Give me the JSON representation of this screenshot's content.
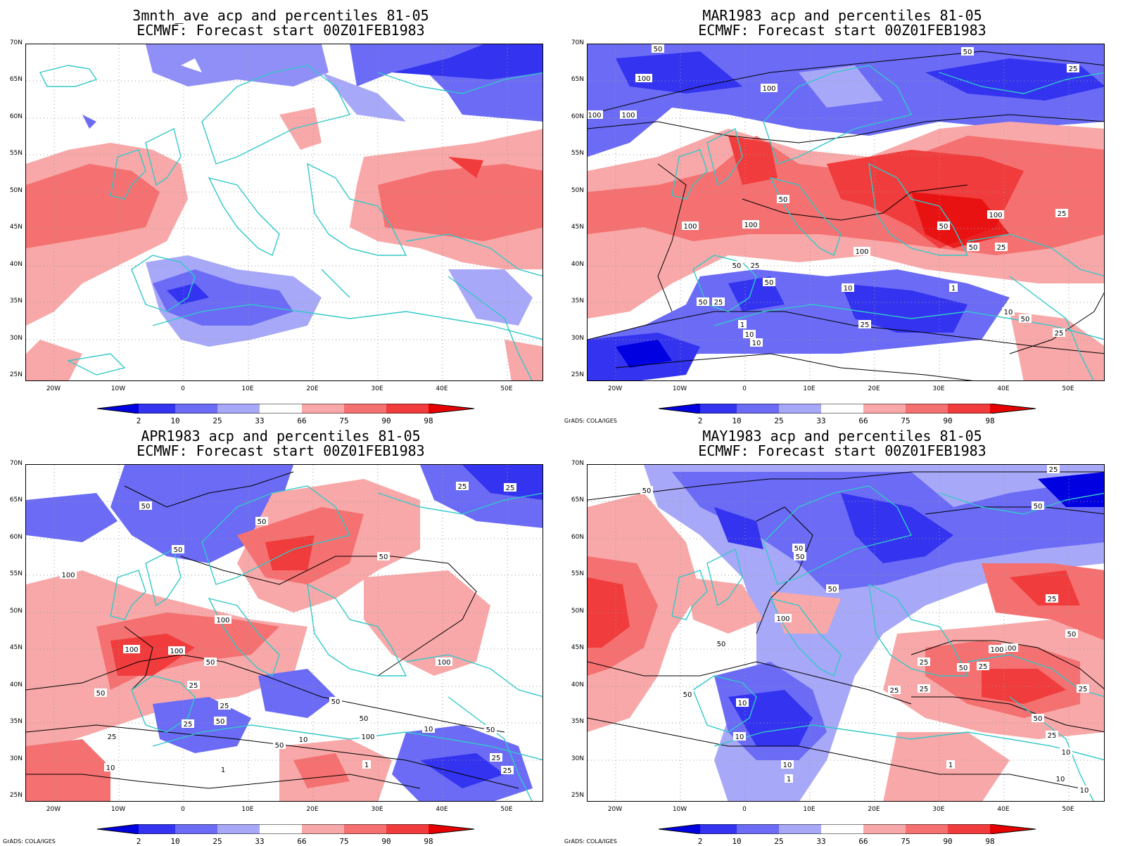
{
  "panels": [
    {
      "title_line1": "3mnth_ave acp and percentiles 81-05",
      "title_line2": "ECMWF: Forecast start 00Z01FEB1983",
      "credit": "",
      "contour_labels": []
    },
    {
      "title_line1": "MAR1983 acp and percentiles 81-05",
      "title_line2": "ECMWF: Forecast start 00Z01FEB1983",
      "credit": "GrADS: COLA/IGES",
      "contour_labels": [
        "50",
        "50",
        "25",
        "100",
        "100",
        "100",
        "100",
        "50",
        "100",
        "100",
        "100",
        "50",
        "50",
        "100",
        "25",
        "25",
        "50",
        "25",
        "50",
        "50",
        "25",
        "10",
        "1",
        "10",
        "10",
        "25",
        "1",
        "50",
        "10",
        "25"
      ]
    },
    {
      "title_line1": "APR1983 acp and percentiles 81-05",
      "title_line2": "ECMWF: Forecast start 00Z01FEB1983",
      "credit": "GrADS: COLA/IGES",
      "contour_labels": [
        "50",
        "25",
        "25",
        "50",
        "50",
        "50",
        "100",
        "100",
        "100",
        "100",
        "100",
        "50",
        "25",
        "25",
        "50",
        "50",
        "50",
        "100",
        "25",
        "50",
        "25",
        "10",
        "10",
        "1",
        "1",
        "25",
        "50",
        "10",
        "25",
        "50"
      ]
    },
    {
      "title_line1": "MAY1983 acp and percentiles 81-05",
      "title_line2": "ECMWF: Forecast start 00Z01FEB1983",
      "credit": "GrADS: COLA/IGES",
      "contour_labels": [
        "50",
        "25",
        "50",
        "50",
        "50",
        "50",
        "100",
        "50",
        "100",
        "50",
        "25",
        "25",
        "50",
        "25",
        "100",
        "25",
        "50",
        "25",
        "25",
        "10",
        "10",
        "10",
        "1",
        "1",
        "10",
        "1",
        "50",
        "25",
        "10",
        "10"
      ]
    }
  ],
  "lat_ticks": [
    "70N",
    "65N",
    "60N",
    "55N",
    "50N",
    "45N",
    "40N",
    "35N",
    "30N",
    "25N"
  ],
  "lon_ticks": [
    "20W",
    "10W",
    "0",
    "10E",
    "20E",
    "30E",
    "40E",
    "50E"
  ],
  "colorbar": {
    "labels": [
      "2",
      "10",
      "25",
      "33",
      "66",
      "75",
      "90",
      "98"
    ],
    "colors": [
      "#0000e0",
      "#3333f0",
      "#6b6bf5",
      "#a8a8f8",
      "#ffffff",
      "#f8a8a8",
      "#f57070",
      "#f03c3c",
      "#e60000"
    ]
  },
  "colors": {
    "coastline": "#33c8c8",
    "contour": "#000000",
    "grid": "#9a9a9a"
  }
}
